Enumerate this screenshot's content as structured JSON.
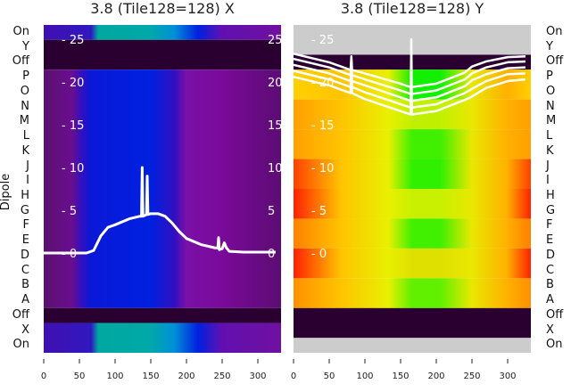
{
  "chart_data": [
    {
      "type": "heatmap",
      "title": "3.8 (Tile128=128) X",
      "ylabel": "Dipole",
      "row_labels": [
        "On",
        "Y",
        "Off",
        "P",
        "O",
        "N",
        "M",
        "L",
        "K",
        "J",
        "I",
        "H",
        "G",
        "F",
        "E",
        "D",
        "C",
        "B",
        "A",
        "Off",
        "X",
        "On"
      ],
      "x_ticks": [
        0,
        50,
        100,
        150,
        200,
        250,
        300
      ],
      "xlim": [
        0,
        325
      ],
      "inner_y_ticks": [
        0,
        5,
        10,
        15,
        20,
        25
      ],
      "overlay": {
        "type": "line",
        "series": [
          {
            "name": "trace",
            "x": [
              0,
              60,
              70,
              80,
              90,
              100,
              120,
              135,
              137,
              138,
              139,
              142,
              144,
              145,
              146,
              150,
              160,
              170,
              180,
              190,
              200,
              220,
              240,
              244,
              245,
              246,
              250,
              253,
              256,
              260,
              280,
              325
            ],
            "y": [
              0,
              0,
              0.3,
              2,
              3,
              3.3,
              4,
              4.3,
              4.3,
              10,
              4.3,
              4.4,
              4.5,
              9,
              4.5,
              4.6,
              4.6,
              4.3,
              3.5,
              2.5,
              1.7,
              1.0,
              0.6,
              0.6,
              1.8,
              0.4,
              0.5,
              1.2,
              0.6,
              0.2,
              0.1,
              0.1
            ]
          }
        ]
      }
    },
    {
      "type": "heatmap",
      "title": "3.8 (Tile128=128) Y",
      "row_labels": [
        "On",
        "Y",
        "Off",
        "P",
        "O",
        "N",
        "M",
        "L",
        "K",
        "J",
        "I",
        "H",
        "G",
        "F",
        "E",
        "D",
        "C",
        "B",
        "A",
        "Off",
        "X",
        "On"
      ],
      "x_ticks": [
        0,
        50,
        100,
        150,
        200,
        250,
        300
      ],
      "xlim": [
        0,
        325
      ],
      "inner_y_ticks": [
        0,
        5,
        10,
        15,
        20,
        25
      ],
      "overlay": {
        "type": "line",
        "series": [
          {
            "name": "trace-1",
            "x": [
              0,
              50,
              80,
              81,
              82,
              100,
              150,
              164,
              165,
              166,
              200,
              240,
              250,
              270,
              300,
              325
            ],
            "y": [
              20.6,
              19.6,
              18.7,
              21.5,
              18.7,
              18.0,
              16.6,
              16.2,
              25,
              16.2,
              16.6,
              17.9,
              18.3,
              19.3,
              20.1,
              20.3
            ]
          },
          {
            "name": "trace-2",
            "x": [
              0,
              50,
              80,
              81,
              82,
              100,
              150,
              164,
              165,
              166,
              200,
              240,
              250,
              270,
              300,
              325
            ],
            "y": [
              21.3,
              20.3,
              19.4,
              21.8,
              19.4,
              18.8,
              17.4,
              17.0,
              17.0,
              17.0,
              17.4,
              18.7,
              19.2,
              20.1,
              20.9,
              21.0
            ]
          },
          {
            "name": "trace-3",
            "x": [
              0,
              50,
              80,
              81,
              82,
              100,
              150,
              164,
              165,
              166,
              200,
              240,
              250,
              270,
              300,
              325
            ],
            "y": [
              22.0,
              21.0,
              20.1,
              22.2,
              20.1,
              19.6,
              18.2,
              17.8,
              17.8,
              17.8,
              18.2,
              19.5,
              20.2,
              20.9,
              21.6,
              21.7
            ]
          },
          {
            "name": "trace-4",
            "x": [
              0,
              50,
              80,
              81,
              82,
              100,
              150,
              164,
              165,
              166,
              200,
              240,
              250,
              270,
              300,
              325
            ],
            "y": [
              22.7,
              21.7,
              20.8,
              22.6,
              20.8,
              20.3,
              19.0,
              18.6,
              18.6,
              18.6,
              19.0,
              20.3,
              21.0,
              21.7,
              22.3,
              22.4
            ]
          },
          {
            "name": "trace-5",
            "x": [
              0,
              50,
              80,
              81,
              82,
              100,
              150,
              164,
              165,
              166,
              200,
              240,
              250,
              270,
              300,
              325
            ],
            "y": [
              23.3,
              22.3,
              21.4,
              23.0,
              21.4,
              21.0,
              19.8,
              19.4,
              19.4,
              19.4,
              19.8,
              21.1,
              21.8,
              22.4,
              22.9,
              23.0
            ]
          }
        ]
      }
    }
  ]
}
